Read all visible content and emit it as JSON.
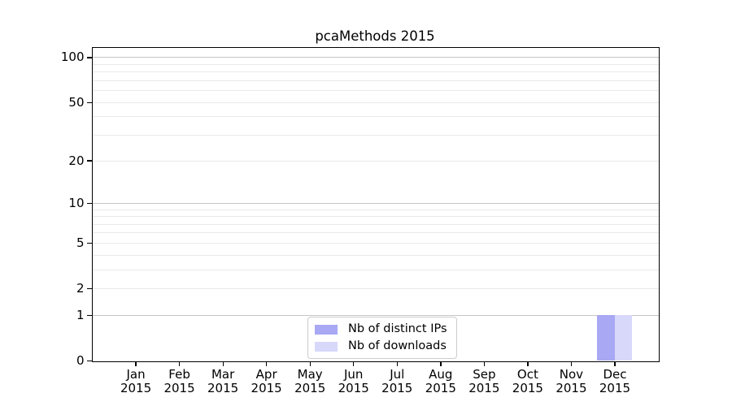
{
  "figure": {
    "title": "pcaMethods 2015"
  },
  "legend": {
    "items": [
      {
        "label": "Nb of distinct IPs",
        "color": "#a8a8f4"
      },
      {
        "label": "Nb of downloads",
        "color": "#d8d8fa"
      }
    ]
  },
  "axes": {
    "y_tick_labels": [
      "0",
      "1",
      "2",
      "5",
      "10",
      "20",
      "50",
      "100"
    ],
    "x_tick_months": [
      "Jan",
      "Feb",
      "Mar",
      "Apr",
      "May",
      "Jun",
      "Jul",
      "Aug",
      "Sep",
      "Oct",
      "Nov",
      "Dec"
    ],
    "x_tick_year": "2015"
  },
  "colors": {
    "bar_distinct_ips": "#a8a8f4",
    "bar_downloads": "#d8d8fa",
    "grid_major": "#c6c6c6",
    "grid_minor": "#e9e9e9",
    "axis_frame": "#000000",
    "text": "#000000",
    "legend_border": "#cccccc",
    "background": "#ffffff"
  },
  "chart_data": {
    "type": "bar",
    "title": "pcaMethods 2015",
    "categories": [
      "Jan 2015",
      "Feb 2015",
      "Mar 2015",
      "Apr 2015",
      "May 2015",
      "Jun 2015",
      "Jul 2015",
      "Aug 2015",
      "Sep 2015",
      "Oct 2015",
      "Nov 2015",
      "Dec 2015"
    ],
    "series": [
      {
        "name": "Nb of distinct IPs",
        "color": "#a8a8f4",
        "values": [
          0,
          0,
          0,
          0,
          0,
          0,
          0,
          0,
          0,
          0,
          0,
          1
        ]
      },
      {
        "name": "Nb of downloads",
        "color": "#d8d8fa",
        "values": [
          0,
          0,
          0,
          0,
          0,
          0,
          0,
          0,
          0,
          0,
          0,
          1
        ]
      }
    ],
    "y_scale": "log1p",
    "y_ticks": [
      0,
      1,
      2,
      5,
      10,
      20,
      50,
      100
    ],
    "y_major_gridlines": [
      1,
      10,
      100
    ],
    "y_minor_gridlines": [
      2,
      3,
      4,
      5,
      6,
      7,
      8,
      9,
      20,
      30,
      40,
      50,
      60,
      70,
      80,
      90
    ],
    "ylim": [
      0,
      116
    ],
    "xlabel": "",
    "ylabel": "",
    "grid": true,
    "legend_position": "lower center"
  }
}
